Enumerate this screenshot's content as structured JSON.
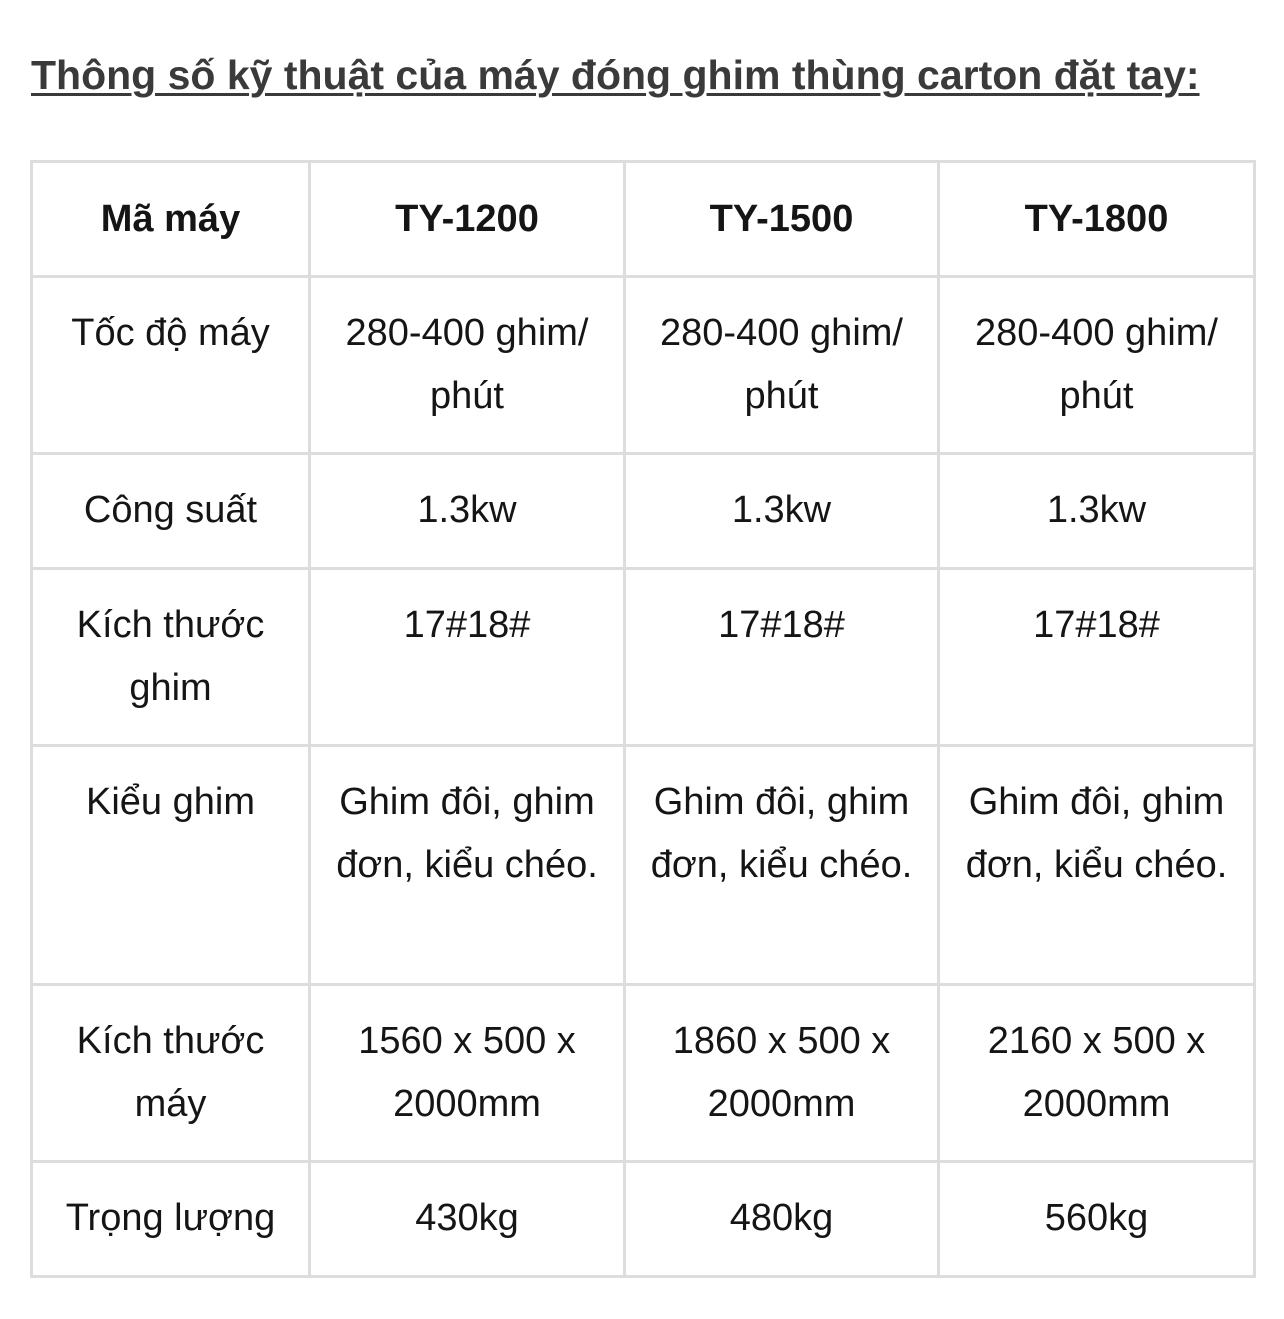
{
  "title": "Thông số kỹ thuật của máy đóng ghim thùng carton đặt tay:",
  "table": {
    "headers": [
      "Mã máy",
      "TY-1200",
      "TY-1500",
      "TY-1800"
    ],
    "rows": [
      [
        "Tốc độ máy",
        "280-400 ghim/ phút",
        "280-400 ghim/ phút",
        "280-400 ghim/ phút"
      ],
      [
        "Công suất",
        "1.3kw",
        "1.3kw",
        "1.3kw"
      ],
      [
        "Kích thước ghim",
        "17#18#",
        "17#18#",
        "17#18#"
      ],
      [
        "Kiểu ghim",
        "Ghim đôi, ghim đơn, kiểu chéo.",
        "Ghim đôi, ghim đơn, kiểu chéo.",
        "Ghim đôi, ghim đơn, kiểu chéo."
      ],
      [
        "Kích thước máy",
        "1560 x 500 x 2000mm",
        "1860 x 500 x 2000mm",
        "2160 x 500 x 2000mm"
      ],
      [
        "Trọng lượng",
        "430kg",
        "480kg",
        "560kg"
      ]
    ]
  }
}
